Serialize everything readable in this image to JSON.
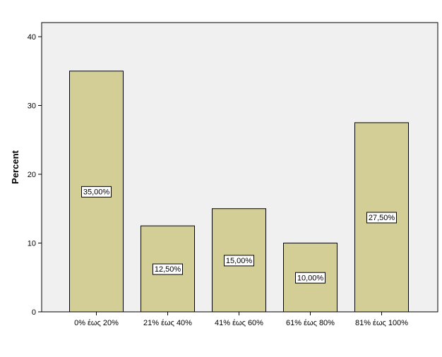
{
  "chart_data": {
    "type": "bar",
    "categories": [
      "0% έως 20%",
      "21% έως 40%",
      "41% έως 60%",
      "61% έως 80%",
      "81% έως 100%"
    ],
    "values": [
      35.0,
      12.5,
      15.0,
      10.0,
      27.5
    ],
    "data_labels": [
      "35,00%",
      "12,50%",
      "15,00%",
      "10,00%",
      "27,50%"
    ],
    "title": "",
    "xlabel": "",
    "ylabel": "Percent",
    "ylim": [
      0,
      40
    ],
    "yticks": [
      0,
      10,
      20,
      30,
      40
    ],
    "grid": false,
    "colors": {
      "plot_background": "#f0f0f0",
      "bar_fill": "#d3cd96",
      "bar_stroke": "#000000",
      "label_box_fill": "#ffffff"
    }
  }
}
